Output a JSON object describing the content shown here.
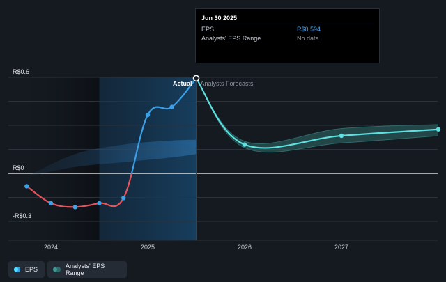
{
  "tooltip": {
    "date": "Jun 30 2025",
    "rows": [
      {
        "label": "EPS",
        "value": "R$0.594",
        "color": "#4aa3ee"
      },
      {
        "label": "Analysts' EPS Range",
        "value": "No data",
        "color": "#8a9099"
      }
    ]
  },
  "legend": [
    {
      "label": "EPS",
      "color": "#3aa0e8"
    },
    {
      "label": "Analysts' EPS Range",
      "color": "#2f6b6a"
    }
  ],
  "chart_data": {
    "type": "line",
    "ylim": [
      -0.3,
      0.6
    ],
    "xlim": [
      2023.62,
      2028.0
    ],
    "y_ticks": [
      {
        "value": 0.6,
        "label": "R$0.6"
      },
      {
        "value": 0,
        "label": "R$0"
      },
      {
        "value": -0.3,
        "label": "-R$0.3"
      }
    ],
    "x_ticks": [
      {
        "value": 2024,
        "label": "2024"
      },
      {
        "value": 2025,
        "label": "2025"
      },
      {
        "value": 2026,
        "label": "2026"
      },
      {
        "value": 2027,
        "label": "2027"
      }
    ],
    "annotations": {
      "actual": "Actual",
      "forecast": "Analysts Forecasts"
    },
    "actual_boundary": 2025.5,
    "highlight_start": 2024.5,
    "series": [
      {
        "name": "EPS",
        "points": [
          {
            "x": 2023.75,
            "y": -0.08
          },
          {
            "x": 2024.0,
            "y": -0.186
          },
          {
            "x": 2024.25,
            "y": -0.21
          },
          {
            "x": 2024.5,
            "y": -0.186
          },
          {
            "x": 2024.75,
            "y": -0.154
          },
          {
            "x": 2025.0,
            "y": 0.365
          },
          {
            "x": 2025.25,
            "y": 0.415
          },
          {
            "x": 2025.5,
            "y": 0.594
          }
        ],
        "negative_color": "#e8525a",
        "positive_color": "#3aa0e8"
      },
      {
        "name": "EPS forecast",
        "points": [
          {
            "x": 2025.5,
            "y": 0.594
          },
          {
            "x": 2026.0,
            "y": 0.18
          },
          {
            "x": 2027.0,
            "y": 0.235
          },
          {
            "x": 2028.0,
            "y": 0.275
          }
        ],
        "color": "#5de0df"
      }
    ],
    "range_band": {
      "name": "Analysts' EPS Range",
      "upper": [
        {
          "x": 2025.5,
          "y": 0.594
        },
        {
          "x": 2026.0,
          "y": 0.2
        },
        {
          "x": 2027.0,
          "y": 0.28
        },
        {
          "x": 2028.0,
          "y": 0.305
        }
      ],
      "lower": [
        {
          "x": 2025.5,
          "y": 0.594
        },
        {
          "x": 2026.0,
          "y": 0.16
        },
        {
          "x": 2027.0,
          "y": 0.19
        },
        {
          "x": 2028.0,
          "y": 0.235
        }
      ]
    },
    "past_band": {
      "upper": [
        {
          "x": 2023.75,
          "y": -0.02
        },
        {
          "x": 2024.25,
          "y": 0.12
        },
        {
          "x": 2024.75,
          "y": 0.18
        },
        {
          "x": 2025.25,
          "y": 0.205
        },
        {
          "x": 2025.5,
          "y": 0.21
        }
      ],
      "lower": [
        {
          "x": 2023.75,
          "y": -0.02
        },
        {
          "x": 2024.25,
          "y": 0.04
        },
        {
          "x": 2024.75,
          "y": 0.07
        },
        {
          "x": 2025.25,
          "y": 0.1
        },
        {
          "x": 2025.5,
          "y": 0.12
        }
      ]
    }
  }
}
